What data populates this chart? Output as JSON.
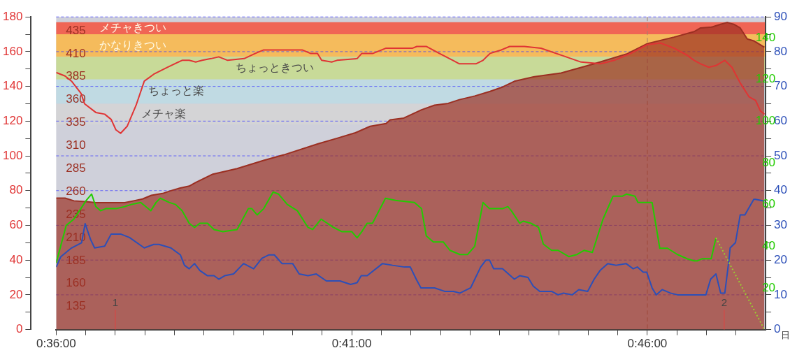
{
  "chart_data": [
    {
      "type": "line",
      "xlabel": "日",
      "xlim": [
        36,
        48
      ],
      "xticks": [
        {
          "value": 36,
          "label": "0:36:00"
        },
        {
          "value": 36.5,
          "label": null
        },
        {
          "value": 37,
          "label": null
        },
        {
          "value": 37.5,
          "label": null
        },
        {
          "value": 38,
          "label": null
        },
        {
          "value": 38.5,
          "label": null
        },
        {
          "value": 39,
          "label": null
        },
        {
          "value": 39.5,
          "label": null
        },
        {
          "value": 40,
          "label": null
        },
        {
          "value": 40.5,
          "label": null
        },
        {
          "value": 41,
          "label": "0:41:00"
        },
        {
          "value": 41.5,
          "label": null
        },
        {
          "value": 42,
          "label": null
        },
        {
          "value": 42.5,
          "label": null
        },
        {
          "value": 43,
          "label": null
        },
        {
          "value": 43.5,
          "label": null
        },
        {
          "value": 44,
          "label": null
        },
        {
          "value": 44.5,
          "label": null
        },
        {
          "value": 45,
          "label": null
        },
        {
          "value": 45.5,
          "label": null
        },
        {
          "value": 46,
          "label": "0:46:00"
        },
        {
          "value": 46.5,
          "label": null
        },
        {
          "value": 47,
          "label": null
        },
        {
          "value": 47.5,
          "label": null
        }
      ],
      "ylim": [
        0,
        180
      ],
      "yticks": [
        0,
        {
          "value": 10,
          "label": null
        },
        20,
        {
          "value": 30,
          "label": null
        },
        40,
        {
          "value": 50,
          "label": null
        },
        60,
        {
          "value": 70,
          "label": null
        },
        80,
        {
          "value": 90,
          "label": null
        },
        100,
        {
          "value": 110,
          "label": null
        },
        120,
        {
          "value": 130,
          "label": null
        },
        140,
        {
          "value": 150,
          "label": null
        },
        160,
        {
          "value": 170,
          "label": null
        },
        180
      ],
      "y2lim": [
        0,
        90
      ],
      "y2ticks": [
        0,
        {
          "value": 5,
          "label": null
        },
        10,
        {
          "value": 15,
          "label": null
        },
        20,
        {
          "value": 25,
          "label": null
        },
        30,
        {
          "value": 35,
          "label": null
        },
        40,
        {
          "value": 45,
          "label": null
        },
        50,
        {
          "value": 55,
          "label": null
        },
        60,
        {
          "value": 65,
          "label": null
        },
        70,
        {
          "value": 75,
          "label": null
        },
        80,
        {
          "value": 85,
          "label": null
        },
        90
      ],
      "y3lim": [
        110,
        450
      ],
      "y3ticks": [
        135,
        160,
        185,
        210,
        235,
        260,
        285,
        310,
        335,
        360,
        385,
        410,
        435
      ],
      "grid": "y",
      "legend": false,
      "marker": "none",
      "bands": [
        {
          "axis": "y",
          "from": 170,
          "to": 177,
          "label": "メチャきつい",
          "color": "#f06555"
        },
        {
          "axis": "y",
          "from": 157,
          "to": 170,
          "label": "かなりきつい",
          "color": "#f5bb5c"
        },
        {
          "axis": "y",
          "from": 144,
          "to": 157,
          "label": "ちょっときつい",
          "color": "#c8da98"
        },
        {
          "axis": "y",
          "from": 130,
          "to": 144,
          "label": "ちょっと楽",
          "color": "#c0dae3"
        },
        {
          "axis": "y",
          "from": 118,
          "to": 130,
          "label": "メチャ楽",
          "color": "#d4d4d6"
        }
      ],
      "ref_lines": [
        {
          "axis": "x",
          "value": 46,
          "color": "#a08070",
          "line_style": "dashed"
        }
      ],
      "annotations": [
        {
          "text": "1",
          "x": 37,
          "y": 0
        },
        {
          "text": "2",
          "x": 47.3,
          "y": 0
        }
      ],
      "series": [
        {
          "type": "area",
          "axis": "y3",
          "color": "#9b2f22",
          "x": [
            36.0,
            36.15,
            36.3,
            36.53,
            36.67,
            36.93,
            37.16,
            37.31,
            37.46,
            37.61,
            37.8,
            37.94,
            38.1,
            38.25,
            38.36,
            38.65,
            39.06,
            39.51,
            39.85,
            40.43,
            40.75,
            41.06,
            41.31,
            41.58,
            41.65,
            41.88,
            42.18,
            42.4,
            42.63,
            42.82,
            43.08,
            43.34,
            43.56,
            43.75,
            44.09,
            44.54,
            45.1,
            45.66,
            46.0,
            46.45,
            46.79,
            46.9,
            47.09,
            47.24,
            47.35,
            47.46,
            47.57,
            47.69,
            47.8,
            47.98
          ],
          "values": [
            253,
            253,
            250,
            249,
            248,
            248,
            248,
            250,
            252,
            256,
            258,
            261,
            264,
            266,
            270,
            279,
            285,
            294,
            300,
            312,
            318,
            324,
            331,
            334,
            338,
            340,
            349,
            354,
            356,
            360,
            364,
            369,
            374,
            380,
            385,
            389,
            399,
            410,
            421,
            428,
            434,
            438,
            439,
            442,
            444,
            442,
            438,
            426,
            424,
            417
          ]
        },
        {
          "color": "#e03434",
          "x": [
            36.0,
            36.15,
            36.26,
            36.42,
            36.48,
            36.67,
            36.82,
            36.93,
            37.01,
            37.09,
            37.2,
            37.35,
            37.49,
            37.65,
            37.88,
            38.13,
            38.25,
            38.36,
            38.47,
            38.62,
            38.75,
            38.9,
            39.18,
            39.37,
            39.51,
            40.16,
            40.3,
            40.42,
            40.49,
            40.66,
            40.75,
            41.09,
            41.17,
            41.36,
            41.58,
            42.03,
            42.1,
            42.26,
            42.48,
            42.71,
            42.82,
            43.1,
            43.22,
            43.34,
            43.53,
            43.67,
            43.92,
            44.2,
            44.54,
            44.88,
            45.21,
            45.44,
            45.72,
            46.0,
            46.22,
            46.45,
            46.67,
            46.79,
            46.9,
            47.04,
            47.16,
            47.31,
            47.43,
            47.57,
            47.72,
            47.83,
            47.91,
            47.98
          ],
          "values": [
            148,
            146,
            143,
            136,
            130,
            125,
            124,
            121,
            115,
            113,
            117,
            129,
            143,
            147,
            151,
            155,
            155,
            154,
            155,
            156,
            157,
            155,
            156,
            159,
            161,
            161,
            159,
            159,
            155,
            154,
            155,
            156,
            159,
            159,
            162,
            162,
            163,
            163,
            159,
            155,
            153,
            153,
            155,
            159,
            161,
            163,
            163,
            162,
            158,
            154,
            153,
            155,
            159,
            164,
            165,
            162,
            158,
            155,
            153,
            151,
            152,
            155,
            151,
            142,
            134,
            132,
            126,
            124
          ]
        },
        {
          "axis": "y2",
          "color": "#2c4fb8",
          "x": [
            36.0,
            36.08,
            36.26,
            36.43,
            36.49,
            36.58,
            36.65,
            36.82,
            36.93,
            37.09,
            37.24,
            37.49,
            37.65,
            37.74,
            37.94,
            38.1,
            38.17,
            38.25,
            38.34,
            38.43,
            38.56,
            38.67,
            38.75,
            38.85,
            39.0,
            39.17,
            39.34,
            39.48,
            39.6,
            39.69,
            39.82,
            40.0,
            40.11,
            40.26,
            40.4,
            40.57,
            40.8,
            40.98,
            41.09,
            41.16,
            41.26,
            41.52,
            41.69,
            41.89,
            41.99,
            42.09,
            42.17,
            42.26,
            42.4,
            42.57,
            42.72,
            42.83,
            43.01,
            43.18,
            43.27,
            43.33,
            43.4,
            43.55,
            43.75,
            43.84,
            43.98,
            44.07,
            44.18,
            44.38,
            44.49,
            44.58,
            44.73,
            44.84,
            44.99,
            45.1,
            45.2,
            45.33,
            45.47,
            45.64,
            45.76,
            45.83,
            45.93,
            45.99,
            46.08,
            46.15,
            46.25,
            46.39,
            46.51,
            46.85,
            46.99,
            47.07,
            47.16,
            47.24,
            47.31,
            47.38,
            47.4,
            47.49,
            47.57,
            47.65,
            47.8,
            47.83,
            47.98
          ],
          "values": [
            18,
            21,
            23.5,
            25,
            30.5,
            26,
            23.5,
            24,
            27.5,
            27.5,
            26.5,
            23.5,
            24.5,
            24.5,
            23.5,
            21.5,
            18.5,
            17.5,
            19,
            17,
            15.5,
            15.5,
            14.5,
            15.5,
            16,
            19,
            17.5,
            20.5,
            21.5,
            21.5,
            19,
            19,
            16,
            15.5,
            16,
            14,
            14,
            13,
            13.5,
            15.5,
            15.5,
            19,
            18.5,
            18,
            18,
            14.5,
            12,
            12,
            12,
            11,
            11,
            10.5,
            12,
            18,
            20,
            20,
            17.5,
            17.5,
            14.5,
            15.5,
            15,
            12.5,
            11,
            11,
            10,
            10.5,
            10,
            11.5,
            11,
            14.5,
            17,
            19,
            18.5,
            19,
            17.5,
            18,
            16.5,
            16.5,
            12,
            10,
            11.5,
            10.5,
            10,
            10,
            10,
            14.5,
            16,
            10.5,
            10.5,
            20,
            23.5,
            25,
            33,
            33,
            37.5,
            37.5,
            37
          ]
        }
      ]
    },
    {
      "type": "line",
      "xlim": [
        36,
        48
      ],
      "y2lim": [
        0,
        150
      ],
      "y2ticks": [
        20,
        40,
        60,
        80,
        100,
        120,
        140
      ],
      "tick_labels": "y",
      "legend": false,
      "marker": "none",
      "series": [
        {
          "axis": "y2",
          "color": "#22cc00",
          "x": [
            36.0,
            36.17,
            36.3,
            36.51,
            36.6,
            36.67,
            36.75,
            36.84,
            37.01,
            37.16,
            37.27,
            37.43,
            37.6,
            37.69,
            37.76,
            37.91,
            38.02,
            38.13,
            38.25,
            38.34,
            38.43,
            38.56,
            38.67,
            38.82,
            39.06,
            39.25,
            39.31,
            39.4,
            39.51,
            39.67,
            39.76,
            39.91,
            40.08,
            40.26,
            40.34,
            40.48,
            40.69,
            40.83,
            41.0,
            41.09,
            41.17,
            41.26,
            41.35,
            41.57,
            41.74,
            42.06,
            42.18,
            42.26,
            42.38,
            42.55,
            42.66,
            42.83,
            42.96,
            43.08,
            43.22,
            43.33,
            43.55,
            43.64,
            43.7,
            43.84,
            43.9,
            44.03,
            44.16,
            44.24,
            44.38,
            44.49,
            44.67,
            44.81,
            44.93,
            45.07,
            45.25,
            45.42,
            45.58,
            45.65,
            45.79,
            45.84,
            46.08,
            46.21,
            46.34,
            46.51,
            46.67,
            46.79,
            46.85,
            46.93,
            47.08,
            47.16
          ],
          "values": [
            32,
            50,
            53,
            62,
            65,
            59,
            57,
            58,
            58,
            59,
            60,
            61,
            57,
            61,
            63,
            61,
            60,
            57,
            51,
            49,
            51,
            51,
            48,
            47,
            48,
            58,
            58,
            55,
            58,
            66,
            65,
            60,
            57,
            49,
            48,
            53,
            49,
            47,
            47,
            44,
            47,
            51,
            51,
            63,
            62,
            61,
            58,
            45,
            42,
            42,
            38,
            36,
            36,
            40,
            61,
            58,
            58,
            59,
            57,
            51,
            52,
            51,
            49,
            41,
            38,
            38,
            35,
            36,
            38,
            37,
            53,
            64,
            64,
            65,
            64,
            61,
            61,
            39,
            39,
            36,
            34,
            33,
            33,
            34,
            34,
            44
          ]
        },
        {
          "axis": "y2",
          "color": "#9acd32",
          "line_style": "dotted",
          "x": [
            47.16,
            47.98
          ],
          "values": [
            44,
            0
          ]
        }
      ]
    }
  ]
}
